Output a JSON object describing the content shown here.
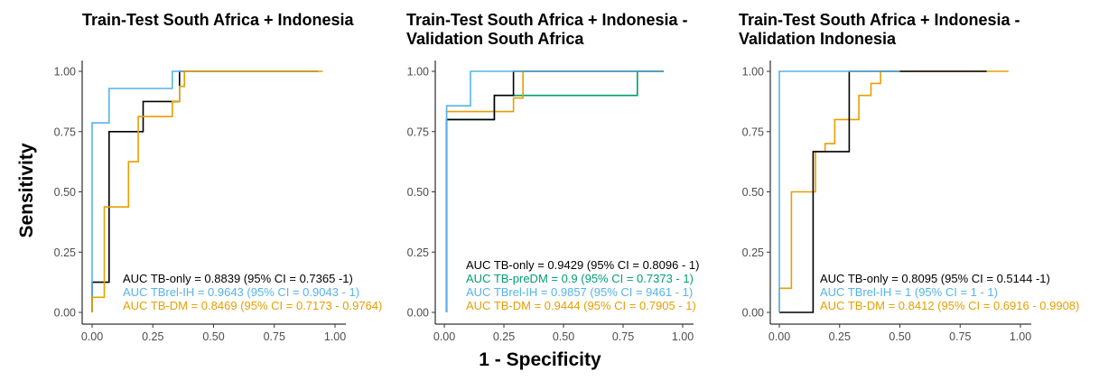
{
  "ylabel": "Sensitivity",
  "xlabel": "1 - Specificity",
  "colors": {
    "TB-only": "#000000",
    "TBrel-IH": "#56B4E9",
    "TB-DM": "#E69F00",
    "TB-preDM": "#009E73"
  },
  "chart_data": [
    {
      "type": "line",
      "title_lines": [
        "Train-Test South Africa + Indonesia"
      ],
      "xlim": [
        0,
        1
      ],
      "ylim": [
        0,
        1
      ],
      "xticks": [
        "0.00",
        "0.25",
        "0.50",
        "0.75",
        "1.00"
      ],
      "yticks": [
        "0.00",
        "0.25",
        "0.50",
        "0.75",
        "1.00"
      ],
      "series": [
        {
          "key": "TB-only",
          "color": "#000000",
          "x": [
            0,
            0,
            0.07,
            0.07,
            0.21,
            0.21,
            0.36,
            0.36,
            0.93
          ],
          "y": [
            0,
            0.125,
            0.125,
            0.75,
            0.75,
            0.875,
            0.875,
            1,
            1
          ]
        },
        {
          "key": "TBrel-IH",
          "color": "#56B4E9",
          "x": [
            0,
            0,
            0.07,
            0.07,
            0.33,
            0.33,
            0.93
          ],
          "y": [
            0,
            0.786,
            0.786,
            0.929,
            0.929,
            1,
            1
          ]
        },
        {
          "key": "TB-DM",
          "color": "#E69F00",
          "x": [
            0,
            0,
            0.05,
            0.05,
            0.15,
            0.15,
            0.19,
            0.19,
            0.33,
            0.33,
            0.36,
            0.36,
            0.38,
            0.38,
            0.95
          ],
          "y": [
            0,
            0.0625,
            0.0625,
            0.4375,
            0.4375,
            0.625,
            0.625,
            0.8125,
            0.8125,
            0.875,
            0.875,
            0.9375,
            0.9375,
            1,
            1
          ]
        }
      ],
      "legend": [
        {
          "key": "TB-only",
          "text": "AUC TB-only = 0.8839 (95% CI = 0.7365 -1)"
        },
        {
          "key": "TBrel-IH",
          "text": "AUC TBrel-IH = 0.9643 (95% CI = 0.9043 - 1)"
        },
        {
          "key": "TB-DM",
          "text": "AUC TB-DM = 0.8469 (95% CI = 0.7173 - 0.9764)"
        }
      ]
    },
    {
      "type": "line",
      "title_lines": [
        "Train-Test South Africa + Indonesia -",
        "Validation South Africa"
      ],
      "xlim": [
        0,
        1
      ],
      "ylim": [
        0,
        1
      ],
      "xticks": [
        "0.00",
        "0.25",
        "0.50",
        "0.75",
        "1.00"
      ],
      "yticks": [
        "0.00",
        "0.25",
        "0.50",
        "0.75",
        "1.00"
      ],
      "series": [
        {
          "key": "TB-preDM",
          "color": "#009E73",
          "x": [
            0.01,
            0.01,
            0.21,
            0.21,
            0.81,
            0.81,
            0.92
          ],
          "y": [
            0,
            0.8,
            0.8,
            0.9,
            0.9,
            1,
            1
          ]
        },
        {
          "key": "TB-DM",
          "color": "#E69F00",
          "x": [
            0.01,
            0.01,
            0.29,
            0.29,
            0.33,
            0.33,
            0.92
          ],
          "y": [
            0,
            0.833,
            0.833,
            0.889,
            0.889,
            1,
            1
          ]
        },
        {
          "key": "TB-only",
          "color": "#000000",
          "x": [
            0.01,
            0.01,
            0.21,
            0.21,
            0.29,
            0.29,
            0.92
          ],
          "y": [
            0,
            0.8,
            0.8,
            0.9,
            0.9,
            1,
            1
          ]
        },
        {
          "key": "TBrel-IH",
          "color": "#56B4E9",
          "x": [
            0.01,
            0.01,
            0.11,
            0.11,
            0.92
          ],
          "y": [
            0,
            0.857,
            0.857,
            1,
            1
          ]
        }
      ],
      "legend": [
        {
          "key": "TB-only",
          "text": "AUC TB-only = 0.9429 (95% CI = 0.8096 - 1)"
        },
        {
          "key": "TB-preDM",
          "text": "AUC TB-preDM = 0.9 (95% CI = 0.7373 - 1)"
        },
        {
          "key": "TBrel-IH",
          "text": "AUC TBrel-IH = 0.9857 (95% CI = 9461 - 1)"
        },
        {
          "key": "TB-DM",
          "text": "AUC TB-DM = 0.9444 (95% CI = 0.7905 - 1)"
        }
      ]
    },
    {
      "type": "line",
      "title_lines": [
        "Train-Test South Africa + Indonesia -",
        "Validation Indonesia"
      ],
      "xlim": [
        0,
        1
      ],
      "ylim": [
        0,
        1
      ],
      "xticks": [
        "0.00",
        "0.25",
        "0.50",
        "0.75",
        "1.00"
      ],
      "yticks": [
        "0.00",
        "0.25",
        "0.50",
        "0.75",
        "1.00"
      ],
      "series": [
        {
          "key": "TB-DM",
          "color": "#E69F00",
          "x": [
            0,
            0,
            0.05,
            0.05,
            0.15,
            0.15,
            0.19,
            0.19,
            0.23,
            0.23,
            0.33,
            0.33,
            0.38,
            0.38,
            0.42,
            0.42,
            0.95
          ],
          "y": [
            0,
            0.1,
            0.1,
            0.5,
            0.5,
            0.667,
            0.667,
            0.7,
            0.7,
            0.8,
            0.8,
            0.9,
            0.9,
            0.95,
            0.95,
            1,
            1
          ]
        },
        {
          "key": "TB-only",
          "color": "#000000",
          "x": [
            0,
            0.14,
            0.14,
            0.29,
            0.29,
            0.86
          ],
          "y": [
            0,
            0,
            0.667,
            0.667,
            1,
            1
          ]
        },
        {
          "key": "TBrel-IH",
          "color": "#56B4E9",
          "x": [
            0,
            0,
            0.5
          ],
          "y": [
            0,
            1,
            1
          ]
        }
      ],
      "legend": [
        {
          "key": "TB-only",
          "text": "AUC TB-only = 0.8095 (95% CI = 0.5144 -1)"
        },
        {
          "key": "TBrel-IH",
          "text": "AUC TBrel-IH = 1 (95% CI = 1 - 1)"
        },
        {
          "key": "TB-DM",
          "text": "AUC TB-DM = 0.8412 (95% CI = 0.6916 - 0.9908)"
        }
      ]
    }
  ]
}
